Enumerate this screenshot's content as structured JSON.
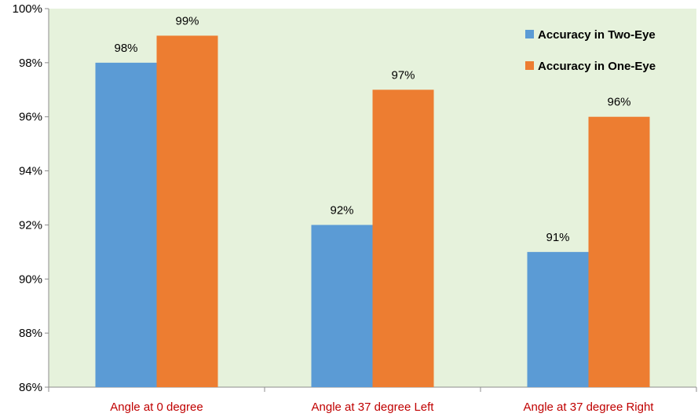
{
  "chart_data": {
    "type": "bar",
    "categories": [
      "Angle at 0 degree",
      "Angle at 37 degree Left",
      "Angle at 37 degree Right"
    ],
    "series": [
      {
        "name": "Accuracy in Two-Eye",
        "values": [
          98,
          92,
          91
        ],
        "color": "#5b9bd5"
      },
      {
        "name": "Accuracy in One-Eye",
        "values": [
          99,
          97,
          96
        ],
        "color": "#ed7d31"
      }
    ],
    "data_labels": [
      [
        "98%",
        "92%",
        "91%"
      ],
      [
        "99%",
        "97%",
        "96%"
      ]
    ],
    "ylim": [
      86,
      100
    ],
    "yticks": [
      86,
      88,
      90,
      92,
      94,
      96,
      98,
      100
    ],
    "ytick_labels": [
      "86%",
      "88%",
      "90%",
      "92%",
      "94%",
      "96%",
      "98%",
      "100%"
    ],
    "plot_background": "#e6f2dc",
    "xtick_color": "#c00000",
    "grid": false,
    "legend_position": "top-right",
    "title": "",
    "xlabel": "",
    "ylabel": ""
  }
}
